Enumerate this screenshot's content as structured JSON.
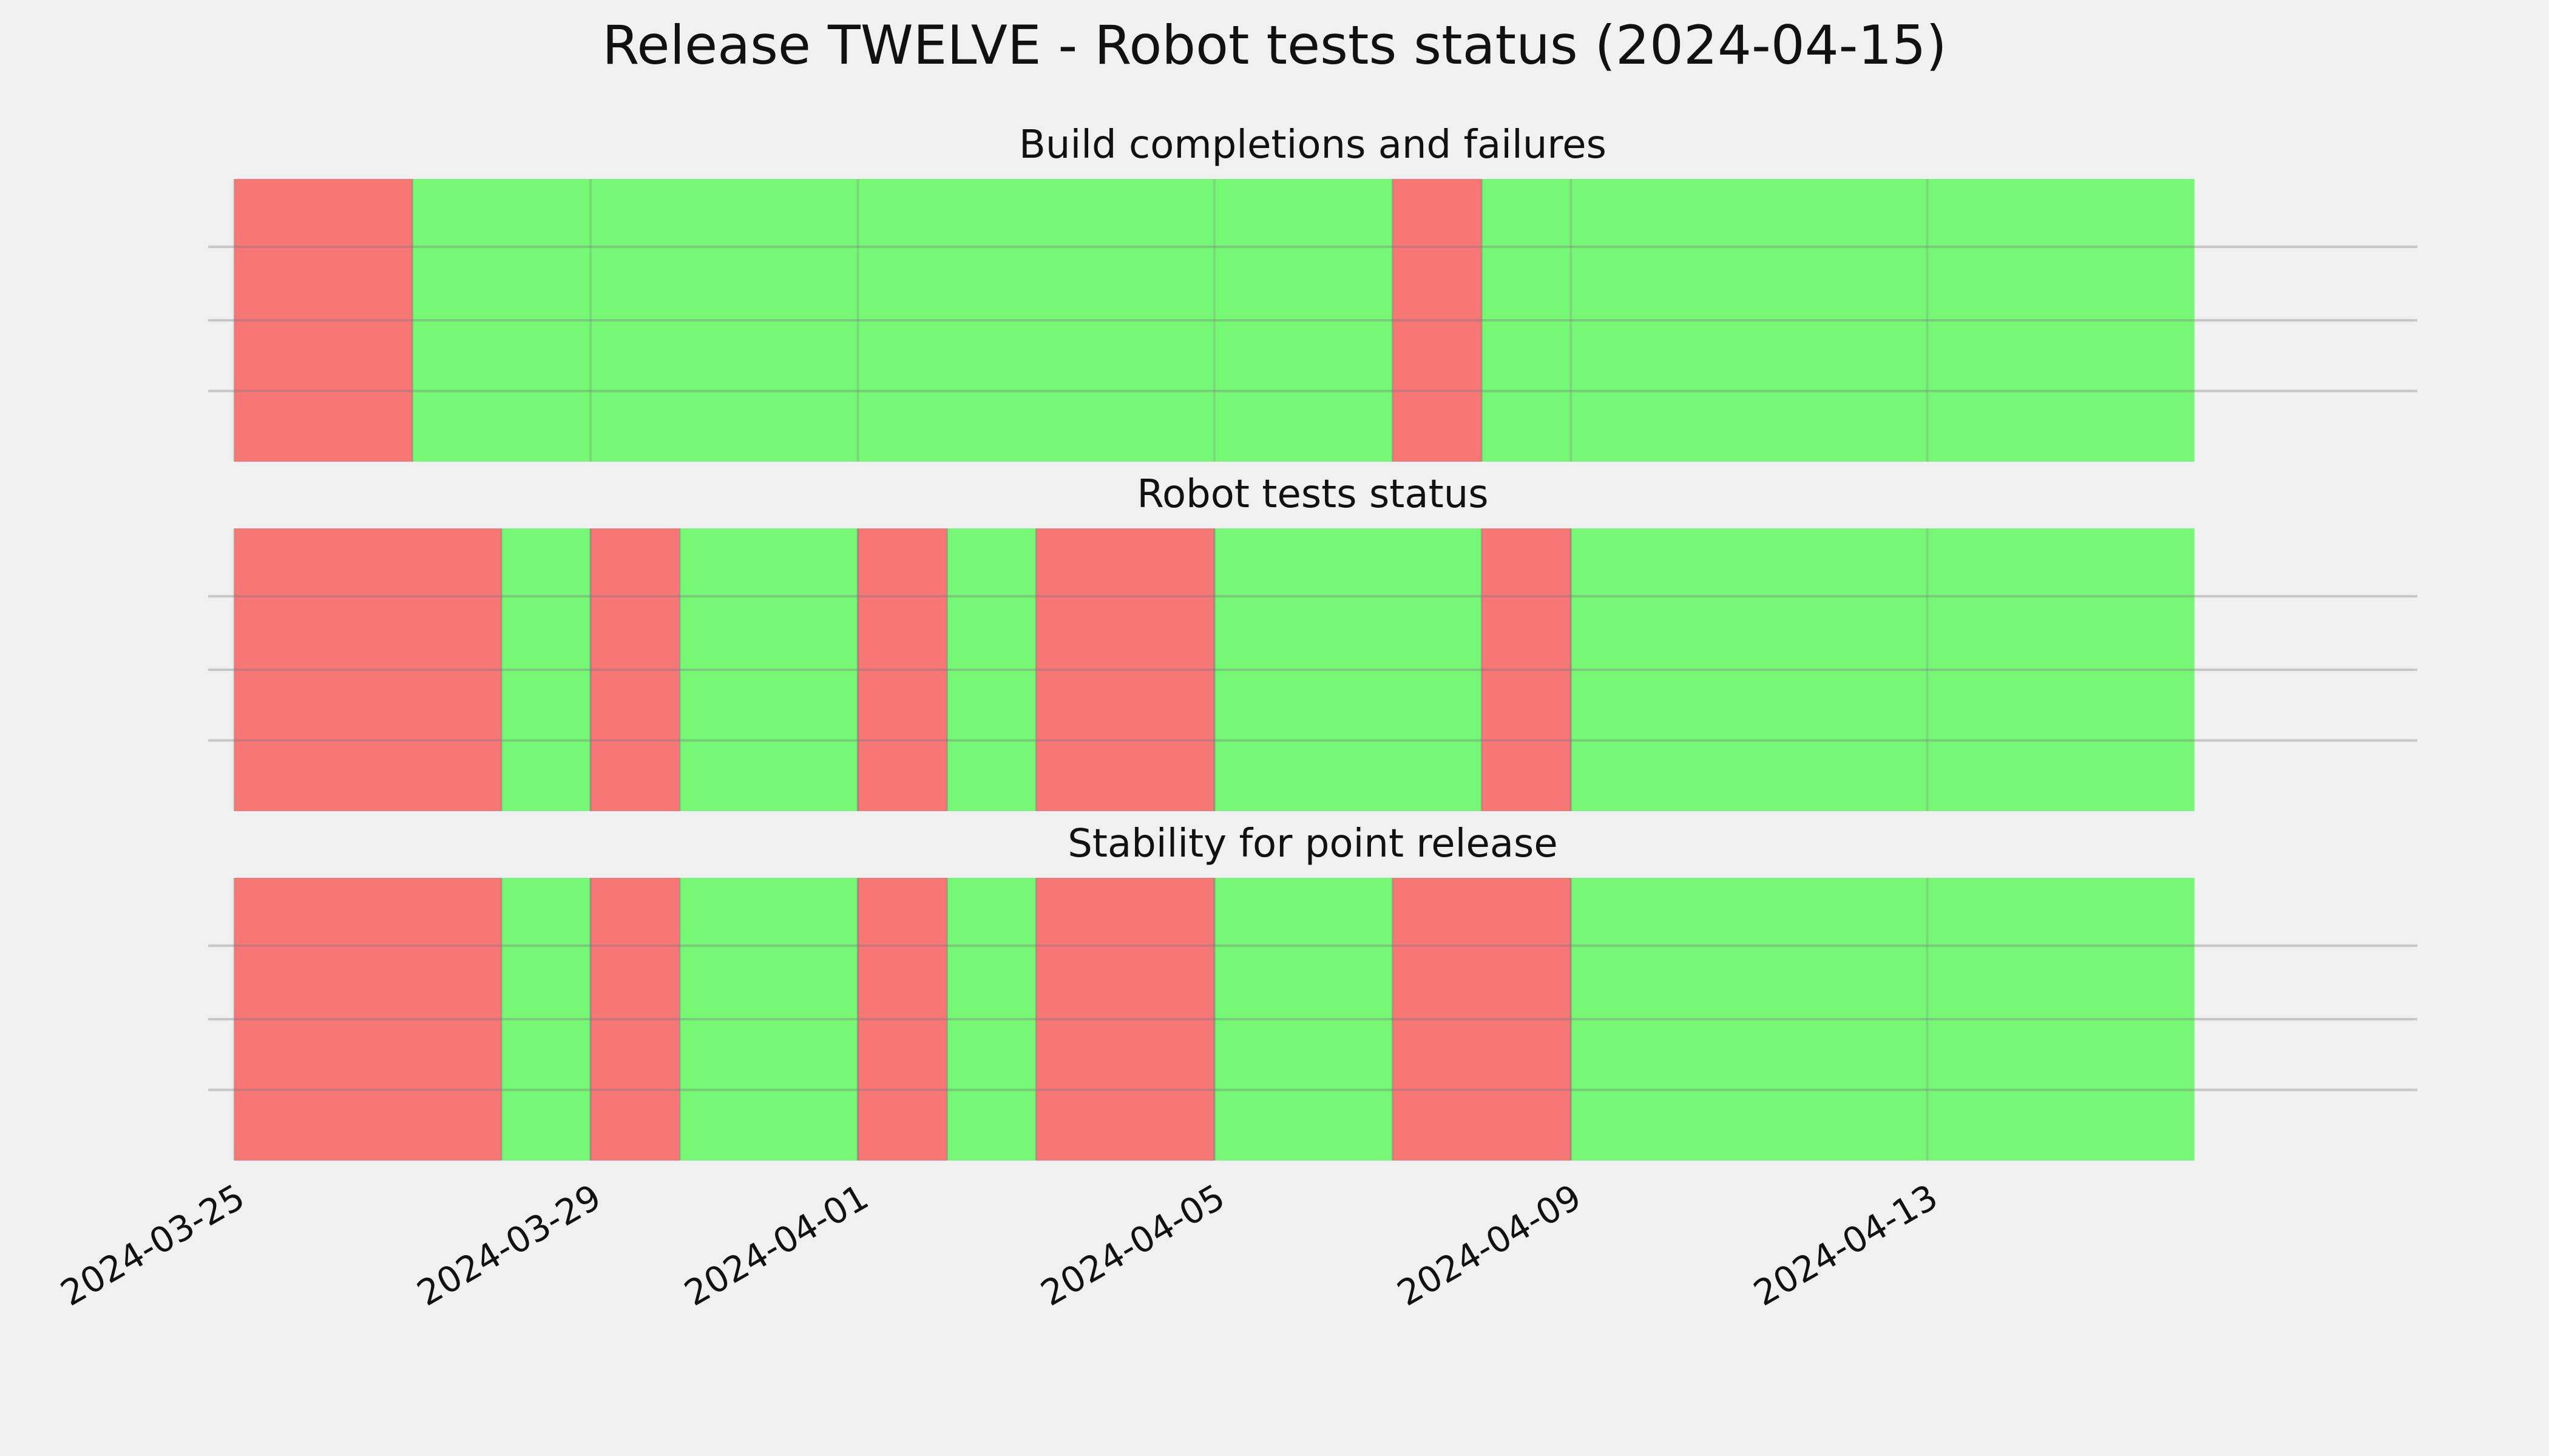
{
  "title": "Release TWELVE - Robot tests status (2024-04-15)",
  "chart_data": {
    "type": "timeline",
    "x_axis": {
      "type": "date",
      "range": [
        "2024-03-24T17:00",
        "2024-04-18T12:00"
      ],
      "tick_labels": [
        "2024-03-25",
        "2024-03-29",
        "2024-04-01",
        "2024-04-05",
        "2024-04-09",
        "2024-04-13"
      ],
      "tick_label_rotation": "30 degrees"
    },
    "grid": true,
    "colors": {
      "pass": "#76f776",
      "fail": "#f77676",
      "background": "#f0f0f0"
    },
    "panels": [
      {
        "title": "Build completions and failures",
        "segments": [
          {
            "start": "2024-03-25",
            "end": "2024-03-27",
            "status": "fail"
          },
          {
            "start": "2024-03-27",
            "end": "2024-04-07",
            "status": "pass"
          },
          {
            "start": "2024-04-07",
            "end": "2024-04-08",
            "status": "fail"
          },
          {
            "start": "2024-04-08",
            "end": "2024-04-16",
            "status": "pass"
          }
        ]
      },
      {
        "title": "Robot tests status",
        "segments": [
          {
            "start": "2024-03-25",
            "end": "2024-03-28",
            "status": "fail"
          },
          {
            "start": "2024-03-28",
            "end": "2024-03-29",
            "status": "pass"
          },
          {
            "start": "2024-03-29",
            "end": "2024-03-30",
            "status": "fail"
          },
          {
            "start": "2024-03-30",
            "end": "2024-04-01",
            "status": "pass"
          },
          {
            "start": "2024-04-01",
            "end": "2024-04-02",
            "status": "fail"
          },
          {
            "start": "2024-04-02",
            "end": "2024-04-03",
            "status": "pass"
          },
          {
            "start": "2024-04-03",
            "end": "2024-04-05",
            "status": "fail"
          },
          {
            "start": "2024-04-05",
            "end": "2024-04-08",
            "status": "pass"
          },
          {
            "start": "2024-04-08",
            "end": "2024-04-09",
            "status": "fail"
          },
          {
            "start": "2024-04-09",
            "end": "2024-04-16",
            "status": "pass"
          }
        ]
      },
      {
        "title": "Stability for point release",
        "segments": [
          {
            "start": "2024-03-25",
            "end": "2024-03-28",
            "status": "fail"
          },
          {
            "start": "2024-03-28",
            "end": "2024-03-29",
            "status": "pass"
          },
          {
            "start": "2024-03-29",
            "end": "2024-03-30",
            "status": "fail"
          },
          {
            "start": "2024-03-30",
            "end": "2024-04-01",
            "status": "pass"
          },
          {
            "start": "2024-04-01",
            "end": "2024-04-02",
            "status": "fail"
          },
          {
            "start": "2024-04-02",
            "end": "2024-04-03",
            "status": "pass"
          },
          {
            "start": "2024-04-03",
            "end": "2024-04-05",
            "status": "fail"
          },
          {
            "start": "2024-04-05",
            "end": "2024-04-07",
            "status": "pass"
          },
          {
            "start": "2024-04-07",
            "end": "2024-04-09",
            "status": "fail"
          },
          {
            "start": "2024-04-09",
            "end": "2024-04-16",
            "status": "pass"
          }
        ]
      }
    ]
  }
}
